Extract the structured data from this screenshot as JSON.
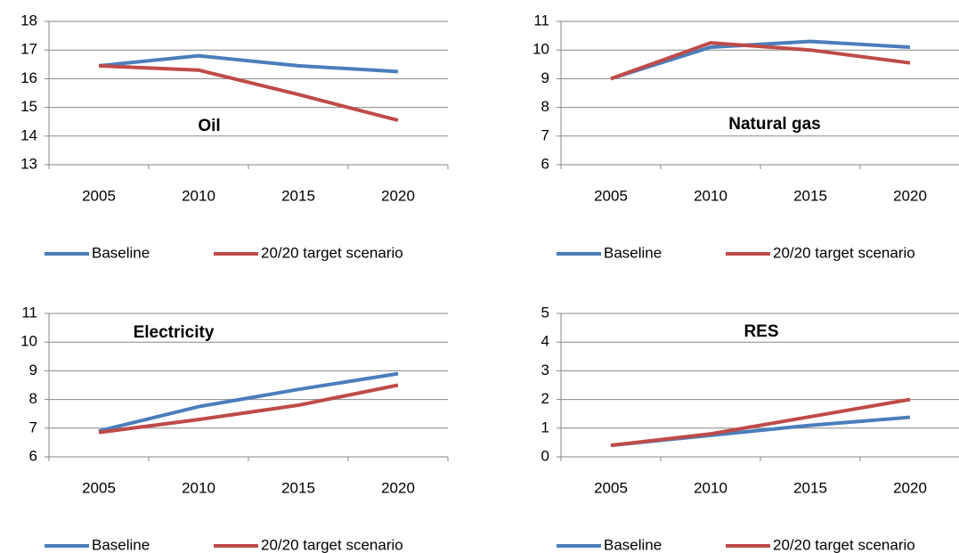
{
  "chart_data": [
    {
      "type": "line",
      "title": "Oil",
      "categories": [
        "2005",
        "2010",
        "2015",
        "2020"
      ],
      "series": [
        {
          "name": "Baseline",
          "color": "#4a7ebb",
          "values": [
            16.45,
            16.8,
            16.45,
            16.25
          ]
        },
        {
          "name": "20/20 target scenario",
          "color": "#be4b48",
          "values": [
            16.45,
            16.3,
            15.45,
            14.55
          ]
        }
      ],
      "ylim": [
        13,
        18
      ],
      "yticks": [
        13,
        14,
        15,
        16,
        17,
        18
      ],
      "grid": true,
      "legend": "bottom"
    },
    {
      "type": "line",
      "title": "Natural gas",
      "categories": [
        "2005",
        "2010",
        "2015",
        "2020"
      ],
      "series": [
        {
          "name": "Baseline",
          "color": "#4a7ebb",
          "values": [
            9.0,
            10.1,
            10.3,
            10.1
          ]
        },
        {
          "name": "20/20 target scenario",
          "color": "#be4b48",
          "values": [
            9.0,
            10.25,
            10.0,
            9.55
          ]
        }
      ],
      "ylim": [
        6,
        11
      ],
      "yticks": [
        6,
        7,
        8,
        9,
        10,
        11
      ],
      "grid": true,
      "legend": "bottom"
    },
    {
      "type": "line",
      "title": "Electricity",
      "categories": [
        "2005",
        "2010",
        "2015",
        "2020"
      ],
      "series": [
        {
          "name": "Baseline",
          "color": "#4a7ebb",
          "values": [
            6.9,
            7.75,
            8.35,
            8.9
          ]
        },
        {
          "name": "20/20 target scenario",
          "color": "#be4b48",
          "values": [
            6.85,
            7.3,
            7.8,
            8.5
          ]
        }
      ],
      "ylim": [
        6,
        11
      ],
      "yticks": [
        6,
        7,
        8,
        9,
        10,
        11
      ],
      "grid": true,
      "legend": "bottom"
    },
    {
      "type": "line",
      "title": "RES",
      "categories": [
        "2005",
        "2010",
        "2015",
        "2020"
      ],
      "series": [
        {
          "name": "Baseline",
          "color": "#4a7ebb",
          "values": [
            0.4,
            0.75,
            1.1,
            1.38
          ]
        },
        {
          "name": "20/20 target scenario",
          "color": "#be4b48",
          "values": [
            0.4,
            0.8,
            1.4,
            2.0
          ]
        }
      ],
      "ylim": [
        0,
        5
      ],
      "yticks": [
        0,
        1,
        2,
        3,
        4,
        5
      ],
      "grid": true,
      "legend": "bottom"
    }
  ]
}
